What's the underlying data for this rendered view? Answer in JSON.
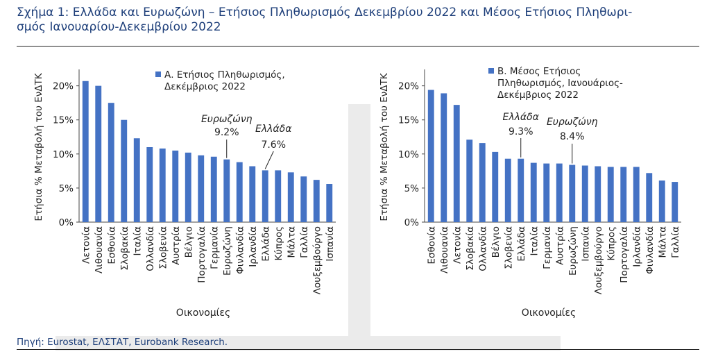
{
  "figure": {
    "title": "Σχήμα 1: Ελλάδα και Ευρωζώνη – Ετήσιος Πληθωρισμός Δεκεμβρίου 2022 και Μέσος Ετήσιος Πληθωρι-σμός Ιανουαρίου-Δεκεμβρίου 2022",
    "title_line1": "Σχήμα 1: Ελλάδα και Ευρωζώνη – Ετήσιος Πληθωρισμός Δεκεμβρίου 2022 και Μέσος Ετήσιος Πληθωρι-",
    "title_line2": "σμός Ιανουαρίου-Δεκεμβρίου 2022",
    "source": "Πηγή: Eurostat, ΕΛΣΤΑΤ, Eurobank Research."
  },
  "colors": {
    "bar": "#4472c4",
    "title": "#1e3f7a",
    "axis": "#444444",
    "text": "#222222"
  },
  "chart_data": [
    {
      "type": "bar",
      "title": "",
      "xlabel": "Οικονομίες",
      "ylabel": "Ετήσια % Μεταβολή του ΕνΔΤΚ",
      "ylim": [
        0,
        22
      ],
      "yticks": [
        0,
        5,
        10,
        15,
        20
      ],
      "ytick_labels": [
        "0%",
        "5%",
        "10%",
        "15%",
        "20%"
      ],
      "grid": false,
      "legend": {
        "position": "top-right",
        "entries": [
          "Α. Ετήσιος Πληθωρισμός,",
          "Δεκέμβριος 2022"
        ]
      },
      "categories": [
        "Λετονία",
        "Λιθουανία",
        "Εσθονία",
        "Σλοβακία",
        "Ιταλία",
        "Ολλανδία",
        "Σλοβενία",
        "Αυστρία",
        "Βέλγιο",
        "Πορτογαλία",
        "Γερμανία",
        "Ευρωζώνη",
        "Φινλανδία",
        "Ιρλανδία",
        "Ελλάδα",
        "Κύπρος",
        "Μάλτα",
        "Γαλλία",
        "Λουξεμβούργο",
        "Ισπανία"
      ],
      "series": [
        {
          "name": "Α. Ετήσιος Πληθωρισμός, Δεκέμβριος 2022",
          "values": [
            20.7,
            20.0,
            17.5,
            15.0,
            12.3,
            11.0,
            10.8,
            10.5,
            10.2,
            9.8,
            9.6,
            9.2,
            8.8,
            8.2,
            7.6,
            7.6,
            7.3,
            6.7,
            6.2,
            5.6
          ]
        }
      ],
      "annotations": [
        {
          "category": "Ευρωζώνη",
          "name": "Ευρωζώνη",
          "value_label": "9.2%"
        },
        {
          "category": "Ελλάδα",
          "name": "Ελλάδα",
          "value_label": "7.6%"
        }
      ]
    },
    {
      "type": "bar",
      "title": "",
      "xlabel": "Οικονομίες",
      "ylabel": "Ετήσια % Μεταβολή του ΕνΔΤΚ",
      "ylim": [
        0,
        22
      ],
      "yticks": [
        0,
        5,
        10,
        15,
        20
      ],
      "ytick_labels": [
        "0%",
        "5%",
        "10%",
        "15%",
        "20%"
      ],
      "grid": false,
      "legend": {
        "position": "top-right",
        "entries": [
          "Β. Μέσος Ετήσιος",
          "Πληθωρισμός, Ιανουάριος-",
          "Δεκέμβριος 2022"
        ]
      },
      "categories": [
        "Εσθονία",
        "Λιθουανία",
        "Λετονία",
        "Σλοβακία",
        "Ολλανδία",
        "Βέλγιο",
        "Σλοβενία",
        "Ελλάδα",
        "Ιταλία",
        "Γερμανία",
        "Αυστρία",
        "Ευρωζώνη",
        "Ισπανία",
        "Λουξεμβούργο",
        "Κύπρος",
        "Πορτογαλία",
        "Ιρλανδία",
        "Φινλανδία",
        "Μάλτα",
        "Γαλλία"
      ],
      "series": [
        {
          "name": "Β. Μέσος Ετήσιος Πληθωρισμός, Ιανουάριος-Δεκέμβριος 2022",
          "values": [
            19.4,
            18.9,
            17.2,
            12.1,
            11.6,
            10.3,
            9.3,
            9.3,
            8.7,
            8.6,
            8.6,
            8.4,
            8.3,
            8.2,
            8.1,
            8.1,
            8.1,
            7.2,
            6.1,
            5.9
          ]
        }
      ],
      "annotations": [
        {
          "category": "Ελλάδα",
          "name": "Ελλάδα",
          "value_label": "9.3%"
        },
        {
          "category": "Ευρωζώνη",
          "name": "Ευρωζώνη",
          "value_label": "8.4%"
        }
      ]
    }
  ]
}
